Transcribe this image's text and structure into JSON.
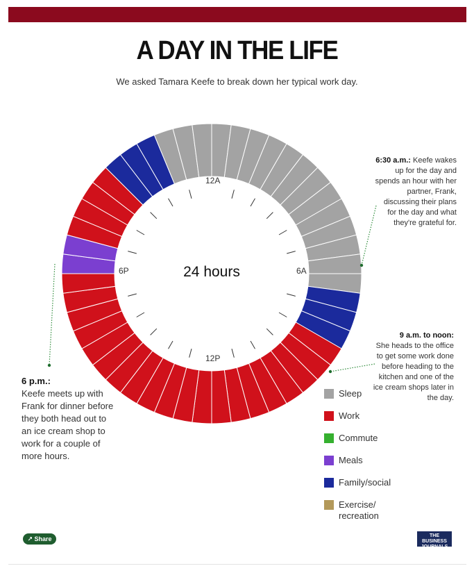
{
  "header": {
    "title": "A DAY IN THE LIFE",
    "subtitle": "We asked Tamara Keefe to break down her typical work day."
  },
  "wheel": {
    "center_label": "24 hours",
    "hour_labels": {
      "top": "12A",
      "right": "6A",
      "bottom": "12P",
      "left": "6P"
    }
  },
  "annotations": {
    "wake": {
      "time": "6:30 a.m.:",
      "lines": [
        "Keefe wakes",
        "up for the day and",
        "spends an hour with her",
        "partner, Frank,",
        "discussing their plans",
        "for the day and what",
        "they're grateful for."
      ]
    },
    "office": {
      "time": "9 a.m. to noon:",
      "lines": [
        "She heads to the office",
        "to get some work done",
        "before heading to the",
        "kitchen and one of the",
        "ice cream shops later in",
        "the day."
      ]
    },
    "dinner": {
      "time": "6 p.m.:",
      "lines": [
        "Keefe meets up with",
        "Frank for dinner before",
        "they both head out to",
        "an ice cream shop to",
        "work for a couple of",
        "more hours."
      ]
    }
  },
  "legend": [
    {
      "label": "Sleep",
      "color": "#a3a3a3"
    },
    {
      "label": "Work",
      "color": "#d0111b"
    },
    {
      "label": "Commute",
      "color": "#35b02f"
    },
    {
      "label": "Meals",
      "color": "#7b3fd0"
    },
    {
      "label": "Family/social",
      "color": "#1b2a9c"
    },
    {
      "label": "Exercise/ recreation",
      "color": "#b3995a"
    }
  ],
  "footer": {
    "share_label": "Share",
    "logo_text": "THE BUSINESS JOURNALS"
  },
  "chart_data": {
    "type": "pie",
    "title": "A DAY IN THE LIFE",
    "subtitle": "We asked Tamara Keefe to break down her typical work day.",
    "center_label": "24 hours",
    "unit": "half-hour slots starting at 12A, clockwise",
    "categories": [
      "Sleep",
      "Work",
      "Commute",
      "Meals",
      "Family/social",
      "Exercise/ recreation"
    ],
    "slots": [
      "Sleep",
      "Sleep",
      "Sleep",
      "Sleep",
      "Sleep",
      "Sleep",
      "Sleep",
      "Sleep",
      "Sleep",
      "Sleep",
      "Sleep",
      "Sleep",
      "Sleep",
      "Family/social",
      "Family/social",
      "Family/social",
      "Work",
      "Work",
      "Work",
      "Work",
      "Work",
      "Work",
      "Work",
      "Work",
      "Work",
      "Work",
      "Work",
      "Work",
      "Work",
      "Work",
      "Work",
      "Work",
      "Work",
      "Work",
      "Work",
      "Work",
      "Meals",
      "Meals",
      "Work",
      "Work",
      "Work",
      "Work",
      "Family/social",
      "Family/social",
      "Family/social",
      "Sleep",
      "Sleep",
      "Sleep"
    ],
    "colors": {
      "Sleep": "#a3a3a3",
      "Work": "#d0111b",
      "Commute": "#35b02f",
      "Meals": "#7b3fd0",
      "Family/social": "#1b2a9c",
      "Exercise/ recreation": "#b3995a"
    }
  }
}
